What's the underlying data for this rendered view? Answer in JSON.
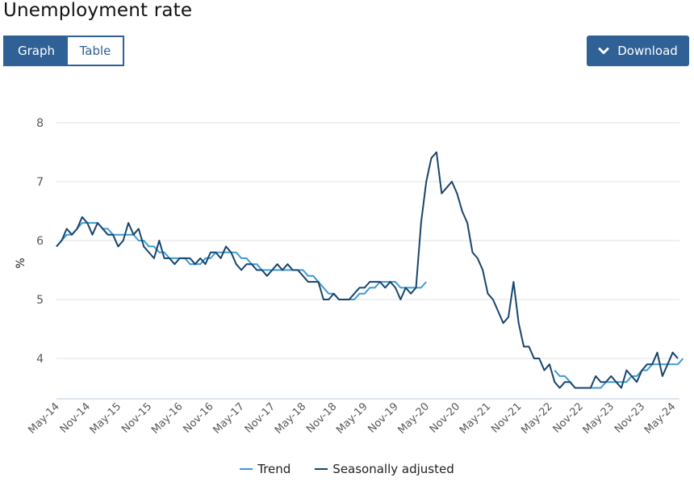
{
  "title": "Unemployment rate",
  "view_toggle": {
    "graph_label": "Graph",
    "table_label": "Table",
    "active": "Graph"
  },
  "download": {
    "label": "Download",
    "icon": "chevron-down-icon"
  },
  "colors": {
    "primary": "#2f6096",
    "trend": "#3d9ad1",
    "seasonally_adjusted": "#17446b",
    "grid": "#e2e2e2",
    "axis": "#c8d3e8",
    "tick_text": "#595959"
  },
  "chart_data": {
    "type": "line",
    "title": "Unemployment rate",
    "xlabel": "",
    "ylabel": "%",
    "ylim": [
      3.3,
      8
    ],
    "yticks": [
      "8",
      "7",
      "6",
      "5",
      "4"
    ],
    "ytick_values": [
      8,
      7,
      6,
      5,
      4
    ],
    "grid": true,
    "legend_position": "bottom",
    "x_tick_labels": [
      "May-14",
      "Nov-14",
      "May-15",
      "Nov-15",
      "May-16",
      "Nov-16",
      "May-17",
      "Nov-17",
      "May-18",
      "Nov-18",
      "May-19",
      "Nov-19",
      "May-20",
      "Nov-20",
      "May-21",
      "Nov-21",
      "May-22",
      "Nov-22",
      "May-23",
      "Nov-23",
      "May-24"
    ],
    "x_start": "May-14",
    "x_step": "1 month",
    "series": [
      {
        "name": "Trend",
        "values": [
          5.9,
          6.0,
          6.1,
          6.1,
          6.2,
          6.3,
          6.3,
          6.3,
          6.3,
          6.2,
          6.2,
          6.1,
          6.1,
          6.1,
          6.1,
          6.1,
          6.0,
          6.0,
          5.9,
          5.9,
          5.8,
          5.8,
          5.7,
          5.7,
          5.7,
          5.7,
          5.6,
          5.6,
          5.6,
          5.7,
          5.7,
          5.8,
          5.8,
          5.8,
          5.8,
          5.8,
          5.7,
          5.7,
          5.6,
          5.6,
          5.5,
          5.5,
          5.5,
          5.5,
          5.5,
          5.5,
          5.5,
          5.5,
          5.5,
          5.4,
          5.4,
          5.3,
          5.2,
          5.1,
          5.1,
          5.0,
          5.0,
          5.0,
          5.0,
          5.1,
          5.1,
          5.2,
          5.2,
          5.3,
          5.3,
          5.3,
          5.3,
          5.2,
          5.2,
          5.2,
          5.2,
          5.2,
          5.3,
          null,
          null,
          null,
          null,
          null,
          null,
          null,
          null,
          null,
          null,
          null,
          null,
          null,
          null,
          null,
          null,
          null,
          null,
          null,
          null,
          null,
          null,
          null,
          null,
          3.8,
          3.7,
          3.7,
          3.6,
          3.5,
          3.5,
          3.5,
          3.5,
          3.5,
          3.5,
          3.6,
          3.6,
          3.6,
          3.6,
          3.6,
          3.7,
          3.7,
          3.8,
          3.8,
          3.9,
          3.9,
          3.9,
          3.9,
          3.9,
          3.9,
          4.0
        ]
      },
      {
        "name": "Seasonally adjusted",
        "values": [
          5.9,
          6.0,
          6.2,
          6.1,
          6.2,
          6.4,
          6.3,
          6.1,
          6.3,
          6.2,
          6.1,
          6.1,
          5.9,
          6.0,
          6.3,
          6.1,
          6.2,
          5.9,
          5.8,
          5.7,
          6.0,
          5.7,
          5.7,
          5.6,
          5.7,
          5.7,
          5.7,
          5.6,
          5.7,
          5.6,
          5.8,
          5.8,
          5.7,
          5.9,
          5.8,
          5.6,
          5.5,
          5.6,
          5.6,
          5.5,
          5.5,
          5.4,
          5.5,
          5.6,
          5.5,
          5.6,
          5.5,
          5.5,
          5.4,
          5.3,
          5.3,
          5.3,
          5.0,
          5.0,
          5.1,
          5.0,
          5.0,
          5.0,
          5.1,
          5.2,
          5.2,
          5.3,
          5.3,
          5.3,
          5.2,
          5.3,
          5.2,
          5.0,
          5.2,
          5.1,
          5.2,
          6.3,
          7.0,
          7.4,
          7.5,
          6.8,
          6.9,
          7.0,
          6.8,
          6.5,
          6.3,
          5.8,
          5.7,
          5.5,
          5.1,
          5.0,
          4.8,
          4.6,
          4.7,
          5.3,
          4.6,
          4.2,
          4.2,
          4.0,
          4.0,
          3.8,
          3.9,
          3.6,
          3.5,
          3.6,
          3.6,
          3.5,
          3.5,
          3.5,
          3.5,
          3.7,
          3.6,
          3.6,
          3.7,
          3.6,
          3.5,
          3.8,
          3.7,
          3.6,
          3.8,
          3.9,
          3.9,
          4.1,
          3.7,
          3.9,
          4.1,
          4.0
        ]
      }
    ]
  }
}
